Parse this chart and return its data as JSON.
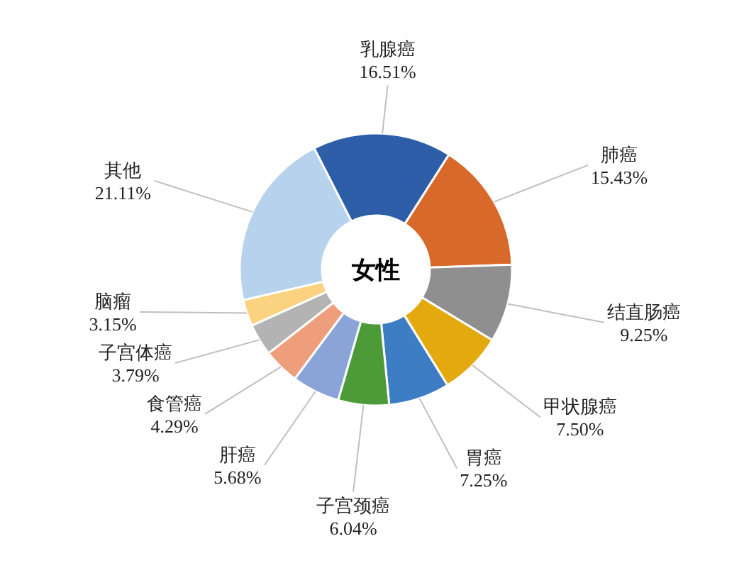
{
  "chart_data": {
    "type": "donut",
    "title": "女性",
    "categories": [
      "乳腺癌",
      "肺癌",
      "结直肠癌",
      "甲状腺癌",
      "胃癌",
      "子宫颈癌",
      "肝癌",
      "食管癌",
      "子宫体癌",
      "脑瘤",
      "其他"
    ],
    "values": [
      16.51,
      15.43,
      9.25,
      7.5,
      7.25,
      6.04,
      5.68,
      4.29,
      3.79,
      3.15,
      21.11
    ],
    "value_labels": [
      "16.51%",
      "15.43%",
      "9.25%",
      "7.50%",
      "7.25%",
      "6.04%",
      "5.68%",
      "4.29%",
      "3.79%",
      "3.15%",
      "21.11%"
    ],
    "colors": [
      "#2f5ea8",
      "#d9692b",
      "#8f8f8f",
      "#e3a90f",
      "#3d7dc4",
      "#4c9a38",
      "#8aa4d8",
      "#ef9e7c",
      "#b3b3b3",
      "#fbd27f",
      "#b7d2ec"
    ]
  }
}
